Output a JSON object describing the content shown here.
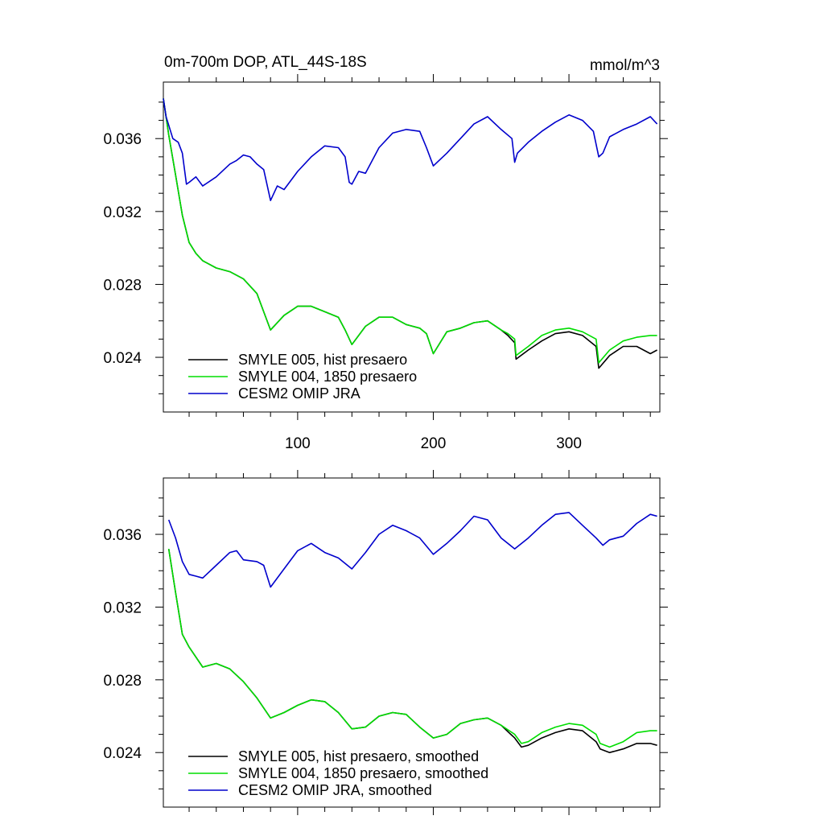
{
  "figure": {
    "title_left": "0m-700m DOP, ATL_44S-18S",
    "title_right": "mmol/m^3"
  },
  "colors": {
    "SMYLE 005": "#000000",
    "SMYLE 004": "#00dd00",
    "CESM2 OMIP": "#0000cc"
  },
  "chart_data": [
    {
      "type": "line",
      "panel": "top",
      "xlim": [
        1,
        367
      ],
      "ylim": [
        0.021,
        0.0391
      ],
      "x_ticks": [
        100,
        200,
        300
      ],
      "x_ticklabels": [
        "100",
        "200",
        "300"
      ],
      "y_ticks": [
        0.024,
        0.028,
        0.032,
        0.036
      ],
      "y_ticklabels": [
        "0.024",
        "0.028",
        "0.032",
        "0.036"
      ],
      "legend_position": "bottom-left",
      "series": [
        {
          "name": "SMYLE 005, hist presaero",
          "color": "#000000",
          "x": [
            1,
            5,
            10,
            15,
            20,
            25,
            30,
            40,
            50,
            60,
            70,
            75,
            80,
            90,
            100,
            110,
            120,
            130,
            135,
            140,
            150,
            160,
            170,
            180,
            190,
            195,
            200,
            210,
            220,
            230,
            240,
            250,
            255,
            260,
            261,
            270,
            280,
            290,
            300,
            310,
            320,
            322,
            330,
            340,
            350,
            360,
            365
          ],
          "y": [
            0.0382,
            0.0362,
            0.034,
            0.0318,
            0.0303,
            0.0297,
            0.0293,
            0.0289,
            0.0287,
            0.0283,
            0.0275,
            0.0265,
            0.0255,
            0.0263,
            0.0268,
            0.0268,
            0.0265,
            0.0262,
            0.0255,
            0.0247,
            0.0257,
            0.0262,
            0.0262,
            0.0258,
            0.0256,
            0.0253,
            0.0242,
            0.0254,
            0.0256,
            0.0259,
            0.026,
            0.0255,
            0.0252,
            0.0248,
            0.0239,
            0.0244,
            0.0249,
            0.0253,
            0.0254,
            0.0252,
            0.0246,
            0.0234,
            0.0241,
            0.0246,
            0.0246,
            0.0242,
            0.0244
          ]
        },
        {
          "name": "SMYLE 004, 1850 presaero",
          "color": "#00dd00",
          "x": [
            1,
            5,
            10,
            15,
            20,
            25,
            30,
            40,
            50,
            60,
            70,
            75,
            80,
            90,
            100,
            110,
            120,
            130,
            135,
            140,
            150,
            160,
            170,
            180,
            190,
            195,
            200,
            210,
            220,
            230,
            240,
            250,
            255,
            260,
            261,
            270,
            280,
            290,
            300,
            310,
            320,
            322,
            330,
            340,
            350,
            360,
            365
          ],
          "y": [
            0.0382,
            0.0362,
            0.034,
            0.0318,
            0.0303,
            0.0297,
            0.0293,
            0.0289,
            0.0287,
            0.0283,
            0.0275,
            0.0265,
            0.0255,
            0.0263,
            0.0268,
            0.0268,
            0.0265,
            0.0262,
            0.0255,
            0.0247,
            0.0257,
            0.0262,
            0.0262,
            0.0258,
            0.0256,
            0.0253,
            0.0242,
            0.0254,
            0.0256,
            0.0259,
            0.026,
            0.0255,
            0.0253,
            0.025,
            0.0241,
            0.0246,
            0.0252,
            0.0255,
            0.0256,
            0.0254,
            0.025,
            0.0237,
            0.0244,
            0.0249,
            0.0251,
            0.0252,
            0.0252
          ]
        },
        {
          "name": "CESM2 OMIP JRA",
          "color": "#0000cc",
          "x": [
            1,
            3,
            8,
            12,
            15,
            18,
            20,
            25,
            30,
            40,
            50,
            55,
            60,
            65,
            70,
            75,
            80,
            85,
            90,
            100,
            110,
            120,
            130,
            135,
            138,
            140,
            145,
            150,
            160,
            170,
            180,
            190,
            195,
            200,
            210,
            220,
            230,
            240,
            250,
            258,
            260,
            262,
            270,
            280,
            290,
            300,
            310,
            318,
            322,
            325,
            330,
            340,
            350,
            360,
            365
          ],
          "y": [
            0.0382,
            0.0372,
            0.036,
            0.0358,
            0.0352,
            0.0335,
            0.0336,
            0.0339,
            0.0334,
            0.0339,
            0.0346,
            0.0348,
            0.0351,
            0.035,
            0.0346,
            0.0343,
            0.0326,
            0.0334,
            0.0332,
            0.0342,
            0.035,
            0.0356,
            0.0355,
            0.035,
            0.0336,
            0.0335,
            0.0342,
            0.0341,
            0.0355,
            0.0363,
            0.0365,
            0.0364,
            0.0355,
            0.0345,
            0.0352,
            0.036,
            0.0368,
            0.0372,
            0.0365,
            0.036,
            0.0347,
            0.0352,
            0.0358,
            0.0364,
            0.0369,
            0.0373,
            0.037,
            0.0364,
            0.035,
            0.0352,
            0.0361,
            0.0365,
            0.0368,
            0.0372,
            0.0368
          ]
        }
      ]
    },
    {
      "type": "line",
      "panel": "bottom",
      "xlim": [
        1,
        367
      ],
      "ylim": [
        0.021,
        0.0391
      ],
      "x_ticks": [
        100,
        200,
        300
      ],
      "x_ticklabels": [],
      "y_ticks": [
        0.024,
        0.028,
        0.032,
        0.036
      ],
      "y_ticklabels": [
        "0.024",
        "0.028",
        "0.032",
        "0.036"
      ],
      "legend_position": "bottom-left",
      "series": [
        {
          "name": "SMYLE 005, hist presaero, smoothed",
          "color": "#000000",
          "x": [
            5,
            10,
            15,
            20,
            30,
            40,
            50,
            60,
            70,
            80,
            90,
            100,
            110,
            120,
            130,
            140,
            150,
            160,
            170,
            180,
            190,
            200,
            210,
            220,
            230,
            240,
            250,
            260,
            265,
            270,
            280,
            290,
            300,
            310,
            320,
            323,
            330,
            340,
            350,
            360,
            365
          ],
          "y": [
            0.0352,
            0.0328,
            0.0305,
            0.0298,
            0.0287,
            0.0289,
            0.0286,
            0.0279,
            0.027,
            0.0259,
            0.0262,
            0.0266,
            0.0269,
            0.0268,
            0.0262,
            0.0253,
            0.0254,
            0.026,
            0.0262,
            0.0261,
            0.0254,
            0.0248,
            0.025,
            0.0256,
            0.0258,
            0.0259,
            0.0255,
            0.0248,
            0.0243,
            0.0244,
            0.0248,
            0.0251,
            0.0253,
            0.0252,
            0.0246,
            0.0242,
            0.024,
            0.0242,
            0.0245,
            0.0245,
            0.0244
          ]
        },
        {
          "name": "SMYLE 004, 1850 presaero, smoothed",
          "color": "#00dd00",
          "x": [
            5,
            10,
            15,
            20,
            30,
            40,
            50,
            60,
            70,
            80,
            90,
            100,
            110,
            120,
            130,
            140,
            150,
            160,
            170,
            180,
            190,
            200,
            210,
            220,
            230,
            240,
            250,
            260,
            265,
            270,
            280,
            290,
            300,
            310,
            320,
            323,
            330,
            340,
            350,
            360,
            365
          ],
          "y": [
            0.0352,
            0.0328,
            0.0305,
            0.0298,
            0.0287,
            0.0289,
            0.0286,
            0.0279,
            0.027,
            0.0259,
            0.0262,
            0.0266,
            0.0269,
            0.0268,
            0.0262,
            0.0253,
            0.0254,
            0.026,
            0.0262,
            0.0261,
            0.0254,
            0.0248,
            0.025,
            0.0256,
            0.0258,
            0.0259,
            0.0255,
            0.025,
            0.0245,
            0.0246,
            0.0251,
            0.0254,
            0.0256,
            0.0255,
            0.025,
            0.0245,
            0.0243,
            0.0246,
            0.0251,
            0.0252,
            0.0252
          ]
        },
        {
          "name": "CESM2 OMIP JRA, smoothed",
          "color": "#0000cc",
          "x": [
            5,
            10,
            15,
            20,
            25,
            30,
            40,
            50,
            55,
            60,
            70,
            75,
            80,
            90,
            100,
            110,
            120,
            130,
            140,
            150,
            160,
            170,
            180,
            190,
            200,
            210,
            220,
            230,
            240,
            250,
            260,
            270,
            280,
            290,
            300,
            310,
            320,
            325,
            330,
            340,
            350,
            360,
            365
          ],
          "y": [
            0.0368,
            0.0358,
            0.0345,
            0.0338,
            0.0337,
            0.0336,
            0.0343,
            0.035,
            0.0351,
            0.0346,
            0.0345,
            0.0343,
            0.0331,
            0.0341,
            0.0351,
            0.0355,
            0.035,
            0.0347,
            0.0341,
            0.035,
            0.036,
            0.0365,
            0.0362,
            0.0358,
            0.0349,
            0.0355,
            0.0362,
            0.037,
            0.0368,
            0.0358,
            0.0352,
            0.0358,
            0.0365,
            0.0371,
            0.0372,
            0.0365,
            0.0358,
            0.0354,
            0.0357,
            0.0359,
            0.0366,
            0.0371,
            0.037
          ]
        }
      ]
    }
  ]
}
